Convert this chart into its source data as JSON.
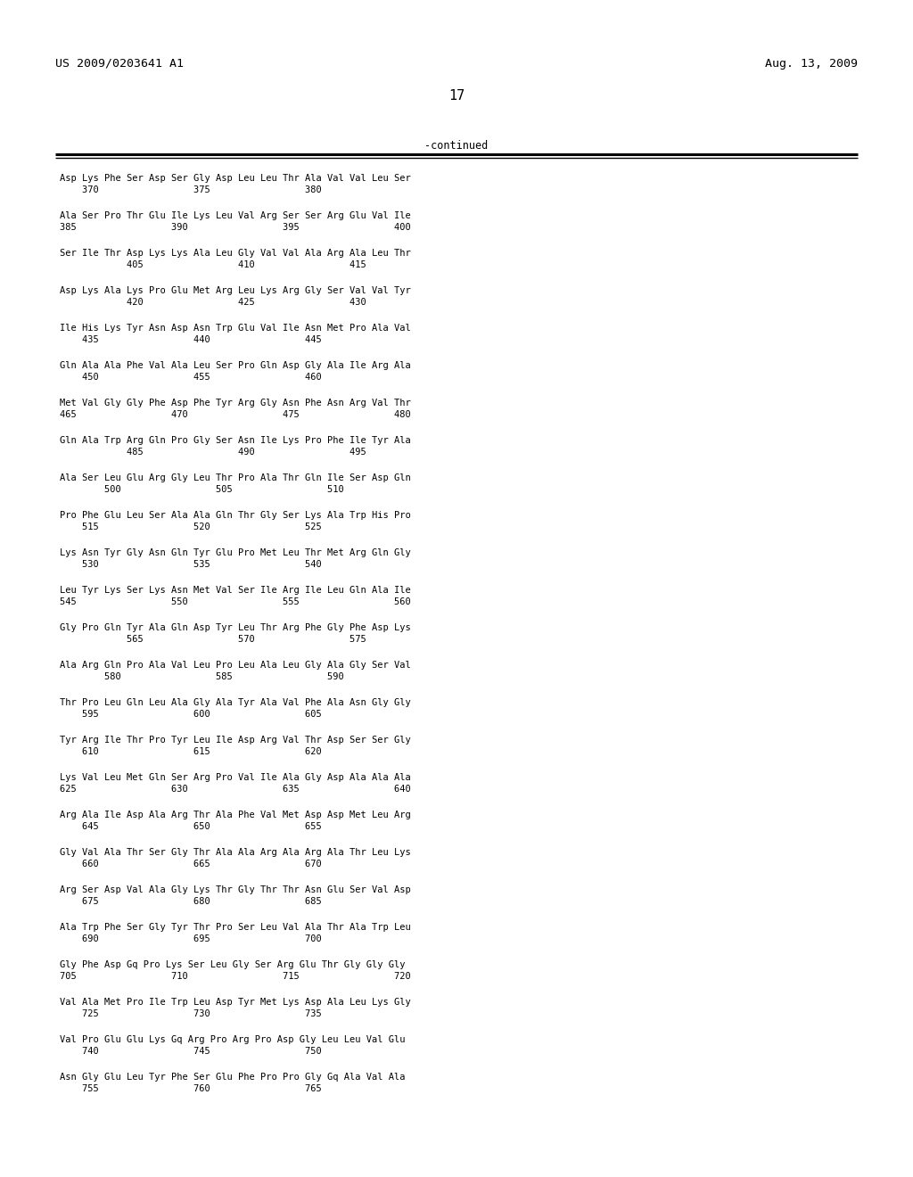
{
  "header_left": "US 2009/0203641 A1",
  "header_right": "Aug. 13, 2009",
  "page_number": "17",
  "continued_label": "-continued",
  "background_color": "#ffffff",
  "text_color": "#000000",
  "sequence_blocks": [
    [
      "Asp Lys Phe Ser Asp Ser Gly Asp Leu Leu Thr Ala Val Val Leu Ser",
      "    370                 375                 380"
    ],
    [
      "Ala Ser Pro Thr Glu Ile Lys Leu Val Arg Ser Ser Arg Glu Val Ile",
      "385                 390                 395                 400"
    ],
    [
      "Ser Ile Thr Asp Lys Lys Ala Leu Gly Val Val Ala Arg Ala Leu Thr",
      "            405                 410                 415"
    ],
    [
      "Asp Lys Ala Lys Pro Glu Met Arg Leu Lys Arg Gly Ser Val Val Tyr",
      "            420                 425                 430"
    ],
    [
      "Ile His Lys Tyr Asn Asp Asn Trp Glu Val Ile Asn Met Pro Ala Val",
      "    435                 440                 445"
    ],
    [
      "Gln Ala Ala Phe Val Ala Leu Ser Pro Gln Asp Gly Ala Ile Arg Ala",
      "    450                 455                 460"
    ],
    [
      "Met Val Gly Gly Phe Asp Phe Tyr Arg Gly Asn Phe Asn Arg Val Thr",
      "465                 470                 475                 480"
    ],
    [
      "Gln Ala Trp Arg Gln Pro Gly Ser Asn Ile Lys Pro Phe Ile Tyr Ala",
      "            485                 490                 495"
    ],
    [
      "Ala Ser Leu Glu Arg Gly Leu Thr Pro Ala Thr Gln Ile Ser Asp Gln",
      "        500                 505                 510"
    ],
    [
      "Pro Phe Glu Leu Ser Ala Ala Gln Thr Gly Ser Lys Ala Trp His Pro",
      "    515                 520                 525"
    ],
    [
      "Lys Asn Tyr Gly Asn Gln Tyr Glu Pro Met Leu Thr Met Arg Gln Gly",
      "    530                 535                 540"
    ],
    [
      "Leu Tyr Lys Ser Lys Asn Met Val Ser Ile Arg Ile Leu Gln Ala Ile",
      "545                 550                 555                 560"
    ],
    [
      "Gly Pro Gln Tyr Ala Gln Asp Tyr Leu Thr Arg Phe Gly Phe Asp Lys",
      "            565                 570                 575"
    ],
    [
      "Ala Arg Gln Pro Ala Val Leu Pro Leu Ala Leu Gly Ala Gly Ser Val",
      "        580                 585                 590"
    ],
    [
      "Thr Pro Leu Gln Leu Ala Gly Ala Tyr Ala Val Phe Ala Asn Gly Gly",
      "    595                 600                 605"
    ],
    [
      "Tyr Arg Ile Thr Pro Tyr Leu Ile Asp Arg Val Thr Asp Ser Ser Gly",
      "    610                 615                 620"
    ],
    [
      "Lys Val Leu Met Gln Ser Arg Pro Val Ile Ala Gly Asp Ala Ala Ala",
      "625                 630                 635                 640"
    ],
    [
      "Arg Ala Ile Asp Ala Arg Thr Ala Phe Val Met Asp Asp Met Leu Arg",
      "    645                 650                 655"
    ],
    [
      "Gly Val Ala Thr Ser Gly Thr Ala Ala Arg Ala Arg Ala Thr Leu Lys",
      "    660                 665                 670"
    ],
    [
      "Arg Ser Asp Val Ala Gly Lys Thr Gly Thr Thr Asn Glu Ser Val Asp",
      "    675                 680                 685"
    ],
    [
      "Ala Trp Phe Ser Gly Tyr Thr Pro Ser Leu Val Ala Thr Ala Trp Leu",
      "    690                 695                 700"
    ],
    [
      "Gly Phe Asp Gq Pro Lys Ser Leu Gly Ser Arg Glu Thr Gly Gly Gly",
      "705                 710                 715                 720"
    ],
    [
      "Val Ala Met Pro Ile Trp Leu Asp Tyr Met Lys Asp Ala Leu Lys Gly",
      "    725                 730                 735"
    ],
    [
      "Val Pro Glu Glu Lys Gq Arg Pro Arg Pro Asp Gly Leu Leu Val Glu",
      "    740                 745                 750"
    ],
    [
      "Asn Gly Glu Leu Tyr Phe Ser Glu Phe Pro Pro Gly Gq Ala Val Ala",
      "    755                 760                 765"
    ]
  ]
}
